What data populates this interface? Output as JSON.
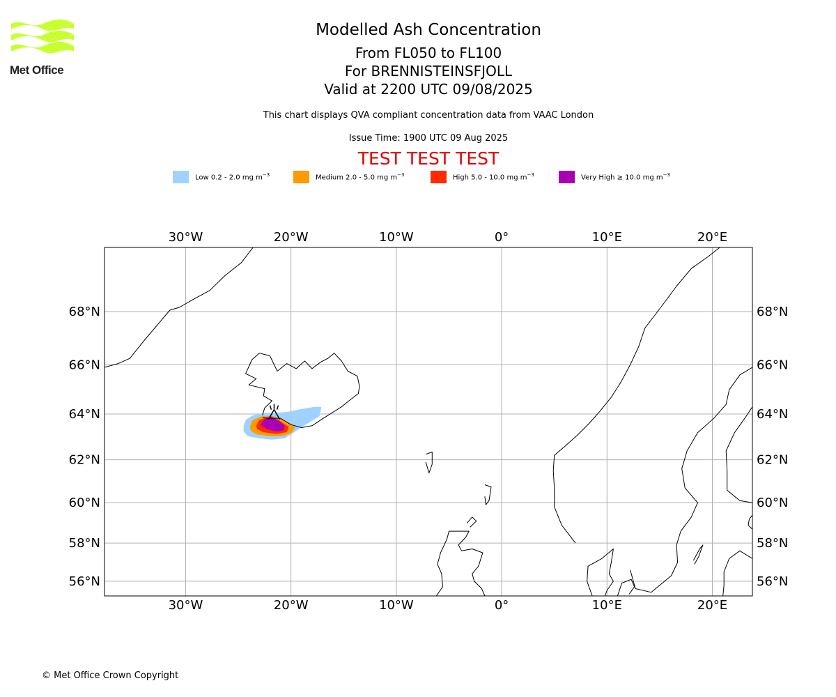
{
  "brand": {
    "logo_text": "Met Office",
    "logo_color": "#c8ff2e"
  },
  "header": {
    "title": "Modelled Ash Concentration",
    "levels": "From FL050 to FL100",
    "volcano": "For BRENNISTEINSFJOLL",
    "valid": "Valid at 2200 UTC 09/08/2025",
    "note": "This chart displays QVA compliant concentration data from VAAC London",
    "issue": "Issue Time: 1900 UTC 09 Aug 2025",
    "test_banner": "TEST TEST TEST"
  },
  "legend": [
    {
      "label": "Low 0.2 - 2.0 mg m",
      "exp": "−3",
      "color": "#a0d2ff"
    },
    {
      "label": "Medium 2.0 - 5.0 mg m",
      "exp": "−3",
      "color": "#ff9a00"
    },
    {
      "label": "High 5.0 - 10.0 mg m",
      "exp": "−3",
      "color": "#ff2a00"
    },
    {
      "label": "Very High ≥ 10.0 mg m",
      "exp": "−3",
      "color": "#aa00b4"
    }
  ],
  "map": {
    "lon_range": [
      -37.7,
      23.8
    ],
    "lat_range": [
      55.2,
      70.2
    ],
    "lon_ticks": [
      {
        "value": -30,
        "label": "30°W"
      },
      {
        "value": -20,
        "label": "20°W"
      },
      {
        "value": -10,
        "label": "10°W"
      },
      {
        "value": 0,
        "label": "0°"
      },
      {
        "value": 10,
        "label": "10°E"
      },
      {
        "value": 20,
        "label": "20°E"
      }
    ],
    "lat_ticks": [
      {
        "value": 56,
        "label": "56°N"
      },
      {
        "value": 58,
        "label": "58°N"
      },
      {
        "value": 60,
        "label": "60°N"
      },
      {
        "value": 62,
        "label": "62°N"
      },
      {
        "value": 64,
        "label": "64°N"
      },
      {
        "value": 66,
        "label": "66°N"
      },
      {
        "value": 68,
        "label": "68°N"
      }
    ],
    "volcano": {
      "lon": -21.6,
      "lat": 63.95
    },
    "ash": {
      "low": [
        [
          -24.5,
          63.5
        ],
        [
          -24.3,
          63.75
        ],
        [
          -23.6,
          63.95
        ],
        [
          -22.5,
          64.05
        ],
        [
          -21.2,
          64.05
        ],
        [
          -20.2,
          64.1
        ],
        [
          -19.1,
          64.2
        ],
        [
          -17.8,
          64.3
        ],
        [
          -17.1,
          64.3
        ],
        [
          -17.3,
          63.9
        ],
        [
          -18.6,
          63.55
        ],
        [
          -19.6,
          63.25
        ],
        [
          -20.6,
          62.95
        ],
        [
          -21.8,
          62.9
        ],
        [
          -23.0,
          62.95
        ],
        [
          -24.1,
          63.05
        ],
        [
          -24.5,
          63.25
        ]
      ],
      "medium": [
        [
          -23.9,
          63.45
        ],
        [
          -23.7,
          63.72
        ],
        [
          -22.8,
          63.9
        ],
        [
          -21.8,
          63.92
        ],
        [
          -20.7,
          63.75
        ],
        [
          -19.6,
          63.45
        ],
        [
          -19.9,
          63.2
        ],
        [
          -20.8,
          63.05
        ],
        [
          -22.0,
          63.05
        ],
        [
          -23.2,
          63.12
        ],
        [
          -23.8,
          63.28
        ]
      ],
      "high": [
        [
          -23.3,
          63.5
        ],
        [
          -23.0,
          63.75
        ],
        [
          -22.1,
          63.88
        ],
        [
          -21.2,
          63.75
        ],
        [
          -20.2,
          63.45
        ],
        [
          -20.4,
          63.22
        ],
        [
          -21.4,
          63.15
        ],
        [
          -22.6,
          63.22
        ],
        [
          -23.2,
          63.35
        ]
      ],
      "very_high": [
        [
          -22.9,
          63.55
        ],
        [
          -22.5,
          63.78
        ],
        [
          -21.9,
          63.9
        ],
        [
          -21.4,
          63.78
        ],
        [
          -20.6,
          63.5
        ],
        [
          -20.7,
          63.3
        ],
        [
          -21.4,
          63.25
        ],
        [
          -22.3,
          63.35
        ]
      ]
    },
    "coastlines": {
      "greenland": [
        [
          -37.7,
          65.9
        ],
        [
          -36.4,
          66.05
        ],
        [
          -35.3,
          66.25
        ],
        [
          -34.6,
          66.6
        ],
        [
          -33.8,
          67.0
        ],
        [
          -32.6,
          67.55
        ],
        [
          -31.5,
          68.05
        ],
        [
          -30.6,
          68.15
        ],
        [
          -29.2,
          68.45
        ],
        [
          -27.7,
          68.75
        ],
        [
          -26.3,
          69.25
        ],
        [
          -24.7,
          69.7
        ],
        [
          -23.6,
          70.2
        ]
      ],
      "iceland": [
        [
          -22.7,
          63.85
        ],
        [
          -22.2,
          63.82
        ],
        [
          -21.0,
          63.82
        ],
        [
          -20.0,
          63.55
        ],
        [
          -19.0,
          63.42
        ],
        [
          -18.0,
          63.5
        ],
        [
          -17.0,
          63.8
        ],
        [
          -16.1,
          64.05
        ],
        [
          -15.2,
          64.3
        ],
        [
          -14.5,
          64.55
        ],
        [
          -13.6,
          64.85
        ],
        [
          -13.5,
          65.15
        ],
        [
          -13.7,
          65.55
        ],
        [
          -14.6,
          65.75
        ],
        [
          -15.2,
          66.15
        ],
        [
          -15.9,
          66.45
        ],
        [
          -16.5,
          66.25
        ],
        [
          -17.2,
          66.1
        ],
        [
          -18.0,
          65.85
        ],
        [
          -18.7,
          66.15
        ],
        [
          -19.5,
          65.85
        ],
        [
          -20.4,
          66.05
        ],
        [
          -21.3,
          65.75
        ],
        [
          -22.0,
          66.35
        ],
        [
          -23.0,
          66.45
        ],
        [
          -23.7,
          66.2
        ],
        [
          -24.3,
          65.65
        ],
        [
          -23.3,
          65.45
        ],
        [
          -24.0,
          65.2
        ],
        [
          -22.5,
          65.05
        ],
        [
          -22.6,
          64.75
        ],
        [
          -21.8,
          64.55
        ],
        [
          -22.5,
          64.25
        ],
        [
          -22.7,
          63.95
        ]
      ],
      "faroe": [
        [
          -7.2,
          62.25
        ],
        [
          -6.6,
          62.35
        ],
        [
          -6.6,
          61.8
        ],
        [
          -6.9,
          61.4
        ],
        [
          -7.2,
          61.9
        ]
      ],
      "shetland": [
        [
          -1.6,
          60.85
        ],
        [
          -1.0,
          60.75
        ],
        [
          -1.2,
          60.1
        ],
        [
          -1.5,
          59.9
        ],
        [
          -1.6,
          60.3
        ]
      ],
      "scotland": [
        [
          -6.2,
          55.2
        ],
        [
          -5.6,
          55.7
        ],
        [
          -5.7,
          56.4
        ],
        [
          -6.1,
          56.9
        ],
        [
          -5.8,
          57.5
        ],
        [
          -5.2,
          58.2
        ],
        [
          -5.0,
          58.6
        ],
        [
          -3.9,
          58.6
        ],
        [
          -3.1,
          58.6
        ],
        [
          -3.4,
          58.3
        ],
        [
          -4.1,
          57.9
        ],
        [
          -3.8,
          57.6
        ],
        [
          -2.8,
          57.7
        ],
        [
          -1.8,
          57.5
        ],
        [
          -2.2,
          56.8
        ],
        [
          -2.8,
          56.4
        ],
        [
          -2.6,
          56.0
        ],
        [
          -1.9,
          55.6
        ],
        [
          -1.6,
          55.2
        ]
      ],
      "norway": [
        [
          7.0,
          58.0
        ],
        [
          5.7,
          58.9
        ],
        [
          5.0,
          59.8
        ],
        [
          5.0,
          60.7
        ],
        [
          4.9,
          61.5
        ],
        [
          5.0,
          62.2
        ],
        [
          6.0,
          62.6
        ],
        [
          7.2,
          63.1
        ],
        [
          8.3,
          63.6
        ],
        [
          9.3,
          64.1
        ],
        [
          10.4,
          64.7
        ],
        [
          11.3,
          65.3
        ],
        [
          12.2,
          66.0
        ],
        [
          13.0,
          66.7
        ],
        [
          13.6,
          67.4
        ],
        [
          14.6,
          67.9
        ],
        [
          15.6,
          68.4
        ],
        [
          16.6,
          68.9
        ],
        [
          18.0,
          69.5
        ],
        [
          19.6,
          69.9
        ],
        [
          20.7,
          70.2
        ]
      ],
      "sweden_finland": [
        [
          12.2,
          56.6
        ],
        [
          12.7,
          55.6
        ],
        [
          14.2,
          55.4
        ],
        [
          16.1,
          56.3
        ],
        [
          16.7,
          57.0
        ],
        [
          16.6,
          57.9
        ],
        [
          17.0,
          58.6
        ],
        [
          18.0,
          59.3
        ],
        [
          18.6,
          60.0
        ],
        [
          17.4,
          60.7
        ],
        [
          17.1,
          61.6
        ],
        [
          17.6,
          62.4
        ],
        [
          18.6,
          63.2
        ],
        [
          20.1,
          63.8
        ],
        [
          21.3,
          64.4
        ],
        [
          21.6,
          65.0
        ],
        [
          22.6,
          65.6
        ],
        [
          23.8,
          65.9
        ]
      ],
      "finland_coast": [
        [
          23.8,
          60.0
        ],
        [
          22.6,
          60.1
        ],
        [
          21.4,
          60.6
        ],
        [
          21.4,
          61.5
        ],
        [
          21.3,
          62.4
        ],
        [
          22.1,
          63.2
        ],
        [
          23.2,
          63.9
        ],
        [
          23.8,
          64.3
        ]
      ],
      "denmark": [
        [
          8.6,
          55.2
        ],
        [
          8.1,
          56.0
        ],
        [
          8.2,
          56.8
        ],
        [
          9.5,
          57.2
        ],
        [
          10.6,
          57.7
        ],
        [
          10.4,
          57.0
        ],
        [
          10.2,
          56.4
        ],
        [
          10.6,
          56.0
        ],
        [
          10.0,
          55.5
        ],
        [
          9.8,
          55.2
        ]
      ],
      "zealand": [
        [
          11.0,
          55.2
        ],
        [
          11.4,
          55.9
        ],
        [
          12.3,
          56.1
        ],
        [
          12.6,
          55.7
        ],
        [
          12.1,
          55.3
        ]
      ],
      "baltic": [
        [
          21.0,
          55.2
        ],
        [
          21.1,
          55.8
        ],
        [
          21.1,
          56.5
        ],
        [
          21.6,
          57.2
        ],
        [
          22.6,
          57.6
        ],
        [
          23.8,
          57.2
        ]
      ],
      "gotland": [
        [
          18.2,
          57.1
        ],
        [
          18.8,
          57.7
        ],
        [
          19.1,
          57.9
        ],
        [
          18.7,
          57.3
        ],
        [
          18.3,
          56.9
        ]
      ],
      "estonia": [
        [
          23.8,
          59.4
        ],
        [
          23.5,
          59.2
        ],
        [
          23.4,
          58.9
        ],
        [
          23.8,
          58.7
        ]
      ],
      "orkney": [
        [
          -3.3,
          59.0
        ],
        [
          -2.8,
          59.3
        ],
        [
          -2.4,
          59.1
        ],
        [
          -3.0,
          58.8
        ]
      ]
    }
  }
}
